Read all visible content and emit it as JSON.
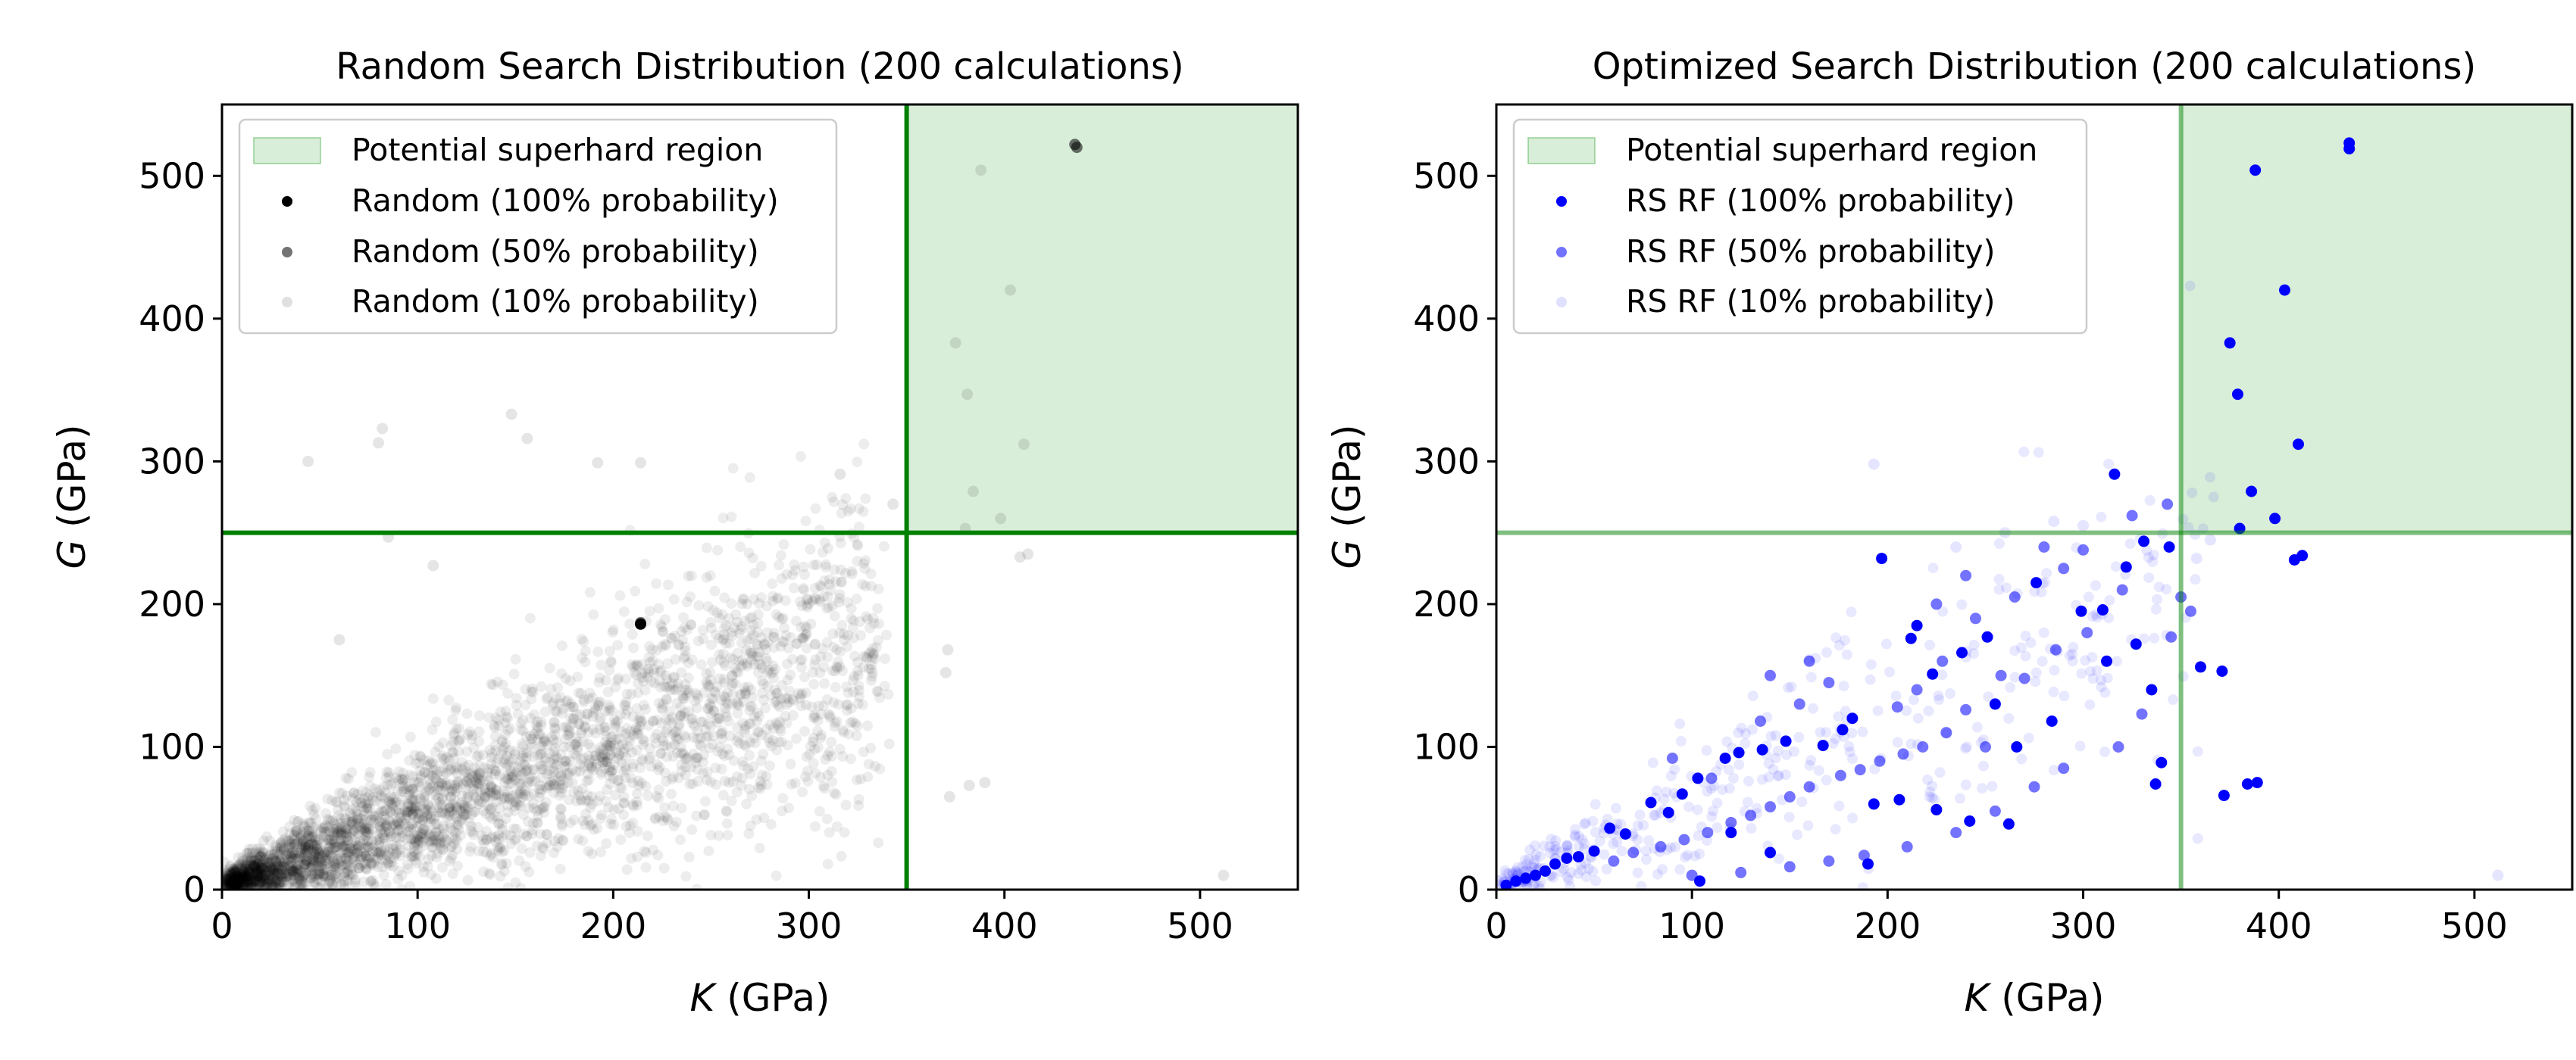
{
  "chart_data": [
    {
      "type": "scatter",
      "title": "Random Search Distribution (200 calculations)",
      "xlabel": {
        "var": "K",
        "unit": " (GPa)"
      },
      "ylabel": {
        "var": "G",
        "unit": " (GPa)"
      },
      "xlim": [
        0,
        550
      ],
      "ylim": [
        0,
        550
      ],
      "xticks": [
        0,
        100,
        200,
        300,
        400,
        500
      ],
      "yticks": [
        0,
        100,
        200,
        300,
        400,
        500
      ],
      "grid": false,
      "legend_position": "upper-left",
      "thresholds": {
        "K": 350,
        "G": 250,
        "color": "#008000",
        "opacity": 1.0
      },
      "region": {
        "name": "Potential superhard region",
        "x": [
          350,
          550
        ],
        "y": [
          250,
          550
        ],
        "color": "#2ca02c"
      },
      "base_color": "#000000",
      "cloud": {
        "count": 3400,
        "seed": 11,
        "slope": 0.52,
        "kmax": 330,
        "opacity": 0.07
      },
      "series": [
        {
          "name": "Random (100% probability)",
          "color": "#000000",
          "opacity": 1.0,
          "points": [
            [
              214,
              186
            ]
          ]
        },
        {
          "name": "Random (50% probability)",
          "color": "#000000",
          "opacity": 0.55,
          "points": [
            [
              436,
              522
            ],
            [
              214,
              187
            ],
            [
              437,
              520
            ]
          ]
        },
        {
          "name": "Random (10% probability)",
          "color": "#000000",
          "opacity": 0.1,
          "points": [
            [
              388,
              504
            ],
            [
              403,
              420
            ],
            [
              375,
              383
            ],
            [
              381,
              347
            ],
            [
              410,
              312
            ],
            [
              384,
              279
            ],
            [
              398,
              260
            ],
            [
              380,
              253
            ],
            [
              408,
              233
            ],
            [
              412,
              235
            ],
            [
              343,
              270
            ],
            [
              148,
              333
            ],
            [
              82,
              323
            ],
            [
              156,
              316
            ],
            [
              80,
              313
            ],
            [
              44,
              300
            ],
            [
              192,
              299
            ],
            [
              214,
              299
            ],
            [
              316,
              291
            ],
            [
              371,
              168
            ],
            [
              370,
              152
            ],
            [
              372,
              65
            ],
            [
              382,
              73
            ],
            [
              390,
              75
            ],
            [
              512,
              10
            ],
            [
              85,
              247
            ],
            [
              108,
              227
            ],
            [
              60,
              175
            ]
          ]
        }
      ]
    },
    {
      "type": "scatter",
      "title": "Optimized Search Distribution (200 calculations)",
      "xlabel": {
        "var": "K",
        "unit": " (GPa)"
      },
      "ylabel": {
        "var": "G",
        "unit": " (GPa)"
      },
      "xlim": [
        0,
        550
      ],
      "ylim": [
        0,
        550
      ],
      "xticks": [
        0,
        100,
        200,
        300,
        400,
        500
      ],
      "yticks": [
        0,
        100,
        200,
        300,
        400,
        500
      ],
      "grid": false,
      "legend_position": "upper-left",
      "thresholds": {
        "K": 350,
        "G": 250,
        "color": "#008000",
        "opacity": 0.5
      },
      "region": {
        "name": "Potential superhard region",
        "x": [
          350,
          550
        ],
        "y": [
          250,
          550
        ],
        "color": "#2ca02c"
      },
      "base_color": "#0000ff",
      "cloud": {
        "count": 420,
        "seed": 23,
        "slope": 0.58,
        "kmax": 360,
        "opacity": 0.09
      },
      "series": [
        {
          "name": "RS RF (100% probability)",
          "color": "#0000ff",
          "opacity": 1.0,
          "points": [
            [
              436,
              523
            ],
            [
              436,
              519
            ],
            [
              388,
              504
            ],
            [
              403,
              420
            ],
            [
              375,
              383
            ],
            [
              379,
              347
            ],
            [
              410,
              312
            ],
            [
              386,
              279
            ],
            [
              398,
              260
            ],
            [
              380,
              253
            ],
            [
              412,
              234
            ],
            [
              408,
              231
            ],
            [
              316,
              291
            ],
            [
              344,
              240
            ],
            [
              331,
              244
            ],
            [
              310,
              196
            ],
            [
              322,
              226
            ],
            [
              327,
              172
            ],
            [
              276,
              215
            ],
            [
              299,
              195
            ],
            [
              251,
              177
            ],
            [
              238,
              166
            ],
            [
              223,
              151
            ],
            [
              215,
              185
            ],
            [
              212,
              176
            ],
            [
              197,
              232
            ],
            [
              182,
              120
            ],
            [
              177,
              112
            ],
            [
              167,
              101
            ],
            [
              148,
              104
            ],
            [
              136,
              98
            ],
            [
              124,
              96
            ],
            [
              117,
              92
            ],
            [
              103,
              78
            ],
            [
              95,
              67
            ],
            [
              88,
              54
            ],
            [
              79,
              61
            ],
            [
              66,
              39
            ],
            [
              58,
              43
            ],
            [
              50,
              27
            ],
            [
              42,
              23
            ],
            [
              36,
              22
            ],
            [
              30,
              18
            ],
            [
              25,
              13
            ],
            [
              20,
              10
            ],
            [
              15,
              8
            ],
            [
              10,
              6
            ],
            [
              5,
              3
            ],
            [
              206,
              63
            ],
            [
              225,
              56
            ],
            [
              193,
              60
            ],
            [
              255,
              130
            ],
            [
              266,
              100
            ],
            [
              284,
              118
            ],
            [
              337,
              74
            ],
            [
              340,
              89
            ],
            [
              371,
              153
            ],
            [
              360,
              156
            ],
            [
              372,
              66
            ],
            [
              384,
              74
            ],
            [
              389,
              75
            ],
            [
              242,
              48
            ],
            [
              262,
              46
            ],
            [
              120,
              40
            ],
            [
              140,
              26
            ],
            [
              190,
              18
            ],
            [
              104,
              6
            ],
            [
              335,
              140
            ],
            [
              312,
              160
            ]
          ]
        },
        {
          "name": "RS RF (50% probability)",
          "color": "#0000ff",
          "opacity": 0.55,
          "points": [
            [
              343,
              270
            ],
            [
              325,
              262
            ],
            [
              320,
              210
            ],
            [
              302,
              180
            ],
            [
              286,
              168
            ],
            [
              270,
              148
            ],
            [
              258,
              150
            ],
            [
              240,
              126
            ],
            [
              230,
              110
            ],
            [
              218,
              100
            ],
            [
              208,
              95
            ],
            [
              196,
              90
            ],
            [
              186,
              84
            ],
            [
              176,
              80
            ],
            [
              160,
              72
            ],
            [
              150,
              65
            ],
            [
              140,
              58
            ],
            [
              130,
              52
            ],
            [
              120,
              47
            ],
            [
              108,
              40
            ],
            [
              96,
              35
            ],
            [
              84,
              30
            ],
            [
              70,
              26
            ],
            [
              60,
              20
            ],
            [
              205,
              128
            ],
            [
              215,
              140
            ],
            [
              228,
              160
            ],
            [
              245,
              190
            ],
            [
              265,
              205
            ],
            [
              290,
              225
            ],
            [
              300,
              238
            ],
            [
              350,
              205
            ],
            [
              355,
              195
            ],
            [
              345,
              177
            ],
            [
              330,
              123
            ],
            [
              318,
              100
            ],
            [
              290,
              85
            ],
            [
              275,
              72
            ],
            [
              255,
              55
            ],
            [
              235,
              40
            ],
            [
              210,
              30
            ],
            [
              188,
              24
            ],
            [
              170,
              20
            ],
            [
              150,
              16
            ],
            [
              125,
              12
            ],
            [
              100,
              10
            ],
            [
              90,
              92
            ],
            [
              110,
              78
            ],
            [
              135,
              118
            ],
            [
              155,
              130
            ],
            [
              170,
              145
            ],
            [
              160,
              160
            ],
            [
              140,
              150
            ],
            [
              250,
              100
            ],
            [
              225,
              200
            ],
            [
              240,
              220
            ],
            [
              280,
              240
            ]
          ]
        },
        {
          "name": "RS RF (10% probability)",
          "color": "#0000ff",
          "opacity": 0.1,
          "points": [
            [
              193,
              298
            ],
            [
              512,
              10
            ],
            [
              358,
              232
            ],
            [
              365,
              245
            ],
            [
              300,
              255
            ],
            [
              285,
              258
            ],
            [
              260,
              250
            ],
            [
              235,
              240
            ]
          ]
        }
      ]
    }
  ]
}
